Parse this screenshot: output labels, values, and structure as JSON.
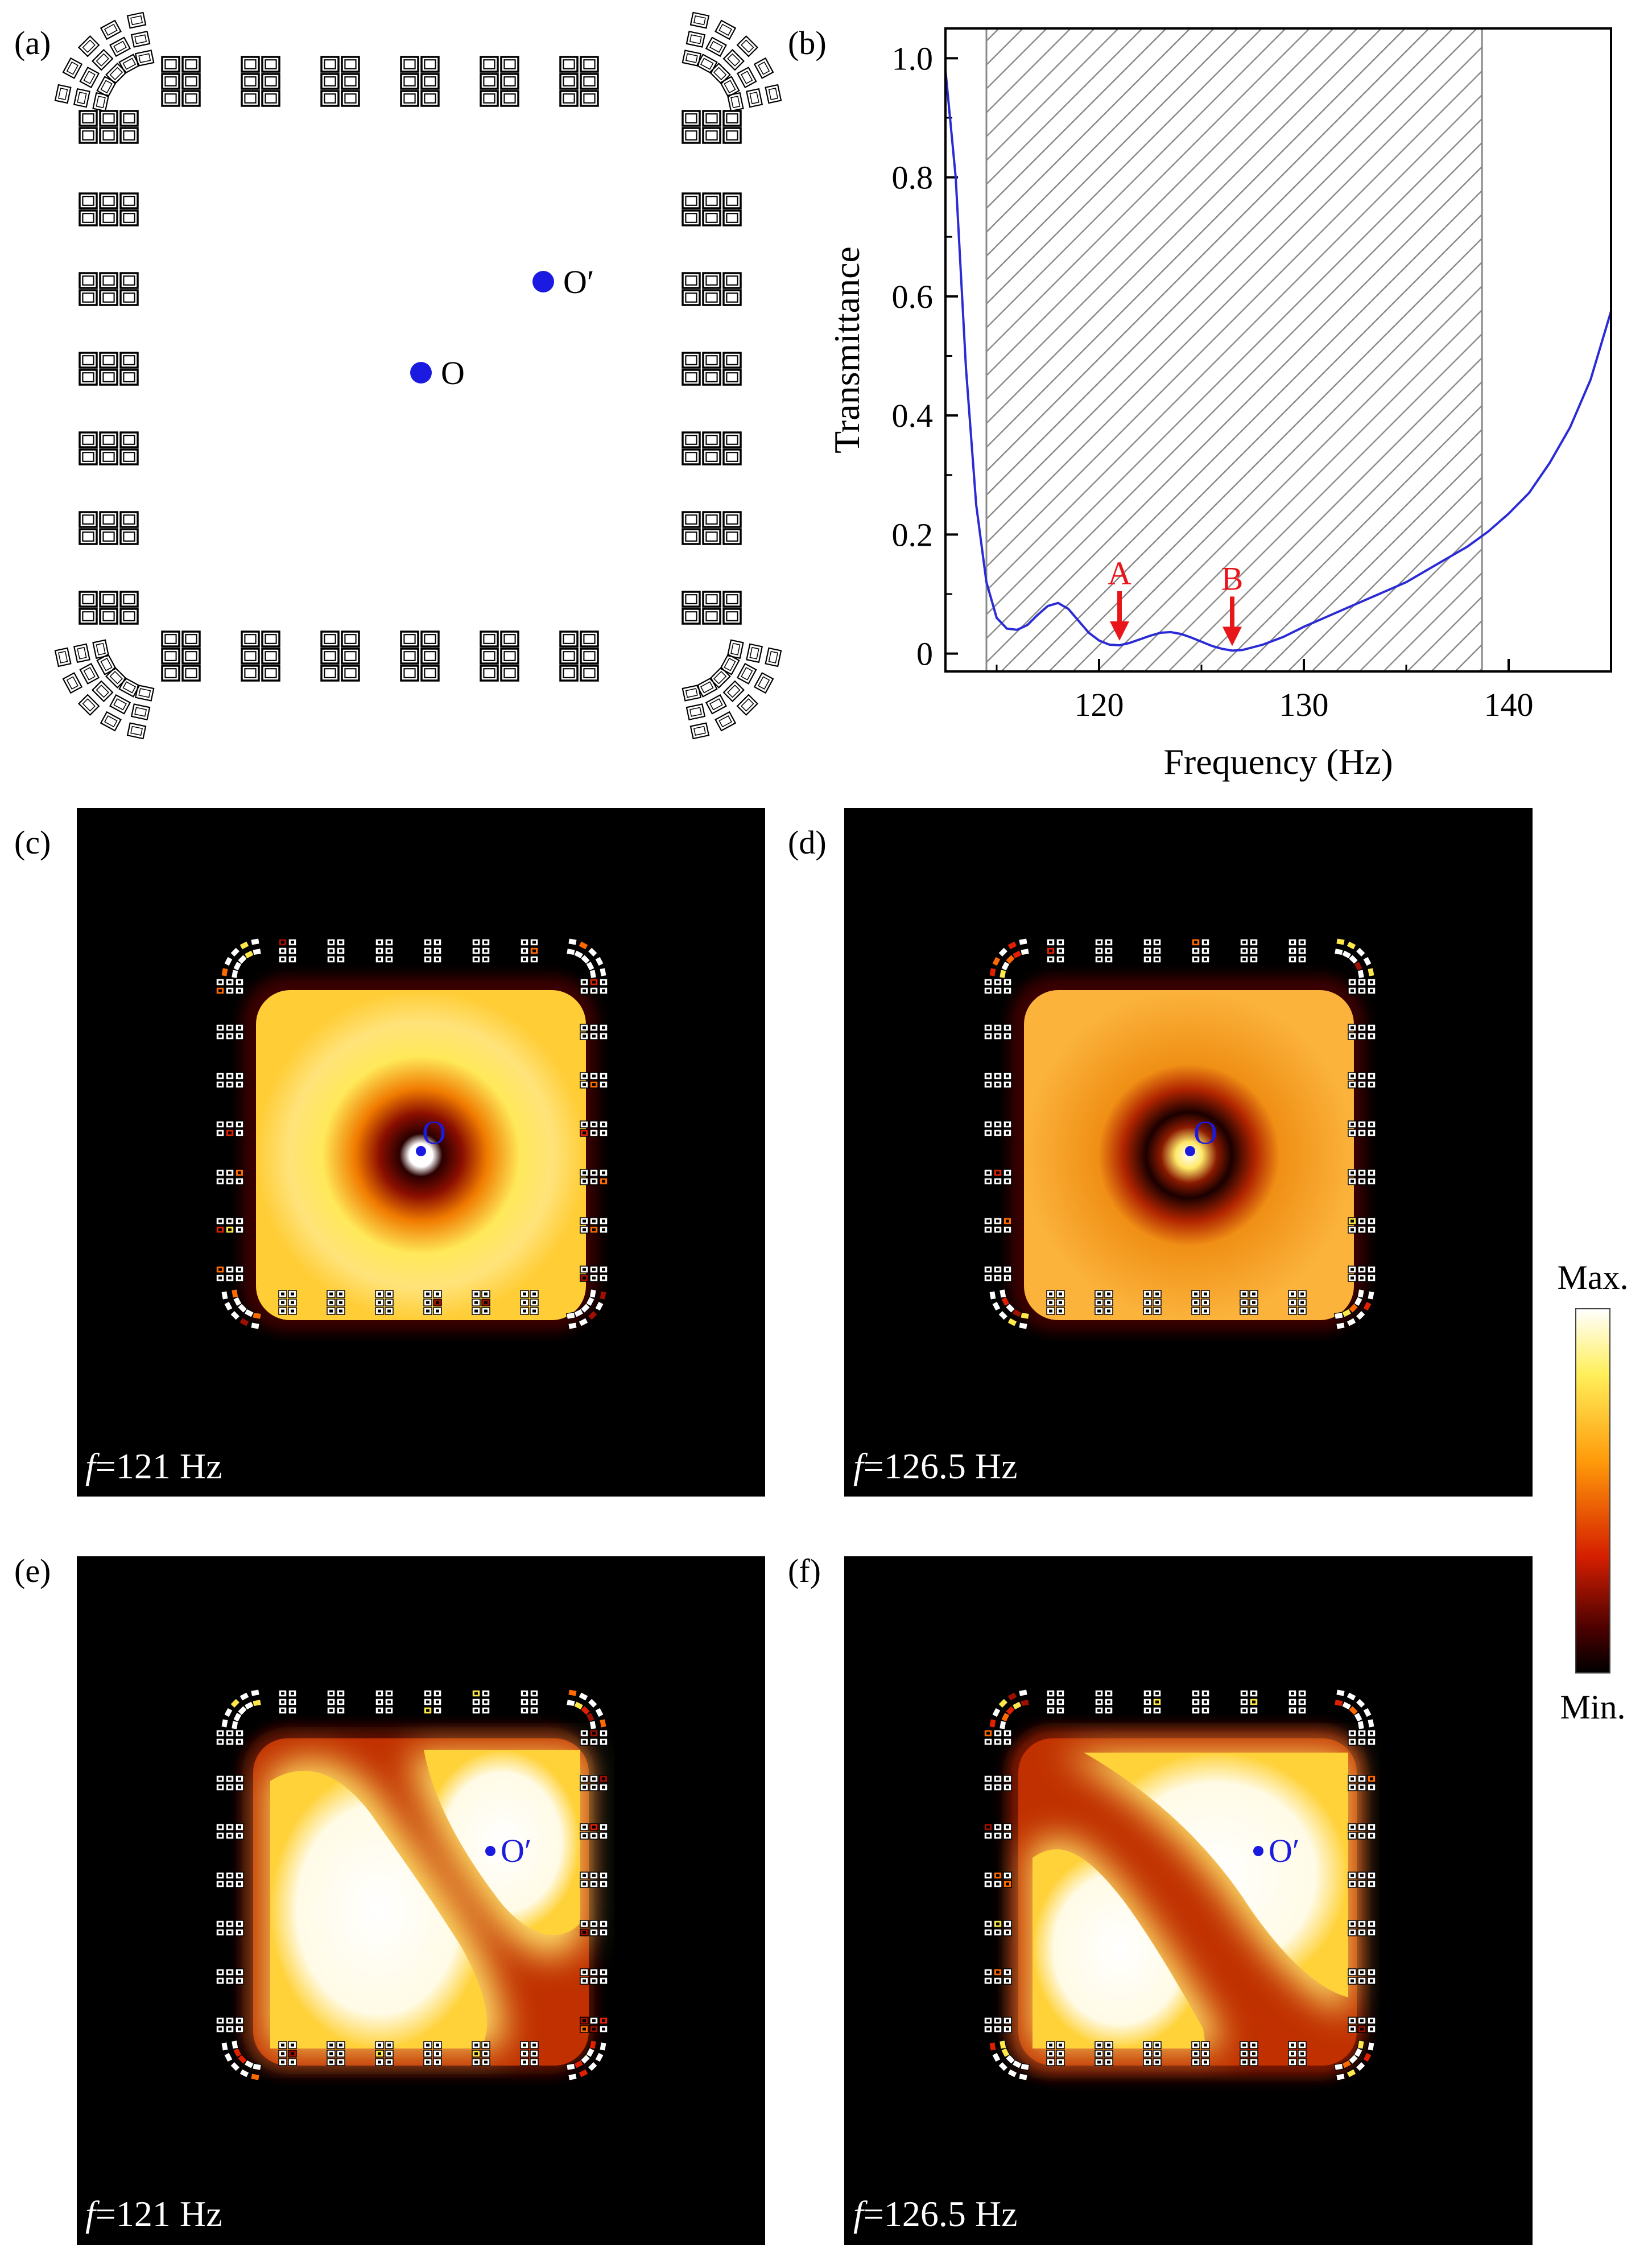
{
  "figure": {
    "panel_labels": {
      "a": "(a)",
      "b": "(b)",
      "c": "(c)",
      "d": "(d)",
      "e": "(e)",
      "f": "(f)"
    },
    "panel_a": {
      "point_O": "O",
      "point_O_prime": "O′"
    },
    "maps": {
      "c": {
        "freq_var": "f",
        "freq_text": "=121 Hz",
        "point": "O",
        "source": "center"
      },
      "d": {
        "freq_var": "f",
        "freq_text": "=126.5 Hz",
        "point": "O",
        "source": "center"
      },
      "e": {
        "freq_var": "f",
        "freq_text": "=121 Hz",
        "point": "O′",
        "source": "offset"
      },
      "f": {
        "freq_var": "f",
        "freq_text": "=126.5 Hz",
        "point": "O′",
        "source": "offset"
      }
    },
    "colorbar": {
      "max": "Max.",
      "min": "Min."
    },
    "colors": {
      "curve": "#2b2bd6",
      "marker": "#1a1ae0",
      "arrow": "#e8161b",
      "hatch": "#8a8a8a"
    }
  },
  "chart_data": {
    "type": "line",
    "xlabel": "Frequency (Hz)",
    "ylabel": "Transmittance",
    "xlim": [
      112.5,
      145
    ],
    "ylim": [
      -0.03,
      1.05
    ],
    "xticks": [
      120,
      130,
      140
    ],
    "xtick_labels": [
      "120",
      "130",
      "140"
    ],
    "yticks": [
      0,
      0.2,
      0.4,
      0.6,
      0.8,
      1.0
    ],
    "ytick_labels": [
      "0",
      "0.2",
      "0.4",
      "0.6",
      "0.8",
      "1.0"
    ],
    "bandgap": [
      114.5,
      138.7
    ],
    "series": [
      {
        "name": "transmittance",
        "x": [
          112.5,
          113,
          113.5,
          114,
          114.5,
          115,
          115.5,
          116,
          116.5,
          117,
          117.5,
          118,
          118.5,
          119,
          119.5,
          120,
          120.5,
          121,
          121.5,
          122,
          122.5,
          123,
          123.5,
          124,
          124.5,
          125,
          125.5,
          126,
          126.5,
          127,
          128,
          129,
          130,
          131,
          132,
          133,
          134,
          135,
          136,
          137,
          138,
          139,
          140,
          141,
          142,
          143,
          144,
          145
        ],
        "y": [
          0.98,
          0.8,
          0.48,
          0.25,
          0.12,
          0.06,
          0.042,
          0.04,
          0.048,
          0.065,
          0.08,
          0.085,
          0.075,
          0.055,
          0.035,
          0.022,
          0.015,
          0.014,
          0.018,
          0.024,
          0.03,
          0.035,
          0.036,
          0.033,
          0.027,
          0.02,
          0.013,
          0.008,
          0.005,
          0.006,
          0.015,
          0.028,
          0.045,
          0.06,
          0.075,
          0.09,
          0.105,
          0.12,
          0.14,
          0.16,
          0.18,
          0.205,
          0.235,
          0.27,
          0.32,
          0.38,
          0.46,
          0.575
        ]
      }
    ],
    "annotations": [
      {
        "label": "A",
        "x": 121
      },
      {
        "label": "B",
        "x": 126.5
      }
    ]
  }
}
